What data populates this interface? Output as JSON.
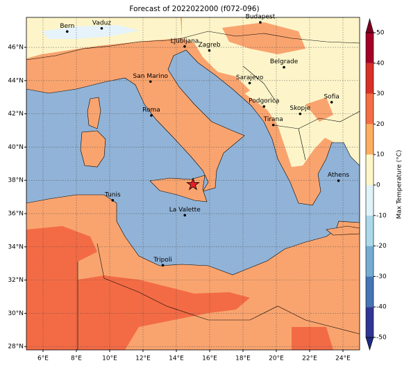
{
  "title": "Forecast of 2022022000 (f072-096)",
  "map": {
    "xlim": [
      5,
      25
    ],
    "ylim": [
      27.8,
      47.8
    ],
    "xticks": [
      {
        "value": 6,
        "label": "6°E"
      },
      {
        "value": 8,
        "label": "8°E"
      },
      {
        "value": 10,
        "label": "10°E"
      },
      {
        "value": 12,
        "label": "12°E"
      },
      {
        "value": 14,
        "label": "14°E"
      },
      {
        "value": 16,
        "label": "16°E"
      },
      {
        "value": 18,
        "label": "18°E"
      },
      {
        "value": 20,
        "label": "20°E"
      },
      {
        "value": 22,
        "label": "22°E"
      },
      {
        "value": 24,
        "label": "24°E"
      }
    ],
    "yticks": [
      {
        "value": 28,
        "label": "28°N"
      },
      {
        "value": 30,
        "label": "30°N"
      },
      {
        "value": 32,
        "label": "32°N"
      },
      {
        "value": 34,
        "label": "34°N"
      },
      {
        "value": 36,
        "label": "36°N"
      },
      {
        "value": 38,
        "label": "38°N"
      },
      {
        "value": 40,
        "label": "40°N"
      },
      {
        "value": 42,
        "label": "42°N"
      },
      {
        "value": 44,
        "label": "44°N"
      },
      {
        "value": 46,
        "label": "46°N"
      }
    ],
    "grid": true,
    "cities": [
      {
        "name": "Bern",
        "lon": 7.45,
        "lat": 46.95
      },
      {
        "name": "Vaduz",
        "lon": 9.52,
        "lat": 47.14
      },
      {
        "name": "Budapest",
        "lon": 19.04,
        "lat": 47.5
      },
      {
        "name": "Ljubljana",
        "lon": 14.5,
        "lat": 46.05
      },
      {
        "name": "Zagreb",
        "lon": 15.98,
        "lat": 45.81
      },
      {
        "name": "Belgrade",
        "lon": 20.46,
        "lat": 44.8
      },
      {
        "name": "Sarajevo",
        "lon": 18.4,
        "lat": 43.85
      },
      {
        "name": "San Marino",
        "lon": 12.45,
        "lat": 43.94
      },
      {
        "name": "Sofia",
        "lon": 23.32,
        "lat": 42.7
      },
      {
        "name": "Podgorica",
        "lon": 19.26,
        "lat": 42.44
      },
      {
        "name": "Skopje",
        "lon": 21.43,
        "lat": 42.0
      },
      {
        "name": "Roma",
        "lon": 12.5,
        "lat": 41.9
      },
      {
        "name": "Tirana",
        "lon": 19.82,
        "lat": 41.33
      },
      {
        "name": "Athens",
        "lon": 23.73,
        "lat": 37.98
      },
      {
        "name": "Tunis",
        "lon": 10.18,
        "lat": 36.8
      },
      {
        "name": "La Valette",
        "lon": 14.51,
        "lat": 35.9
      },
      {
        "name": "Tripoli",
        "lon": 13.19,
        "lat": 32.89
      }
    ],
    "marker": {
      "lon": 15.0,
      "lat": 37.75,
      "color": "#e8202a"
    }
  },
  "colorbar": {
    "label": "Max Temperature (°C)",
    "lim": [
      -50,
      50
    ],
    "ticks": [
      -50,
      -40,
      -30,
      -20,
      -10,
      0,
      10,
      20,
      30,
      40,
      50
    ],
    "colors": [
      "#313695",
      "#4575b4",
      "#74add1",
      "#abd9e9",
      "#e0f3f8",
      "#fff6c8",
      "#fdae61",
      "#f46d43",
      "#d73027",
      "#a50026"
    ],
    "extend_colors": [
      "#1f2a80",
      "#7a0020"
    ]
  }
}
